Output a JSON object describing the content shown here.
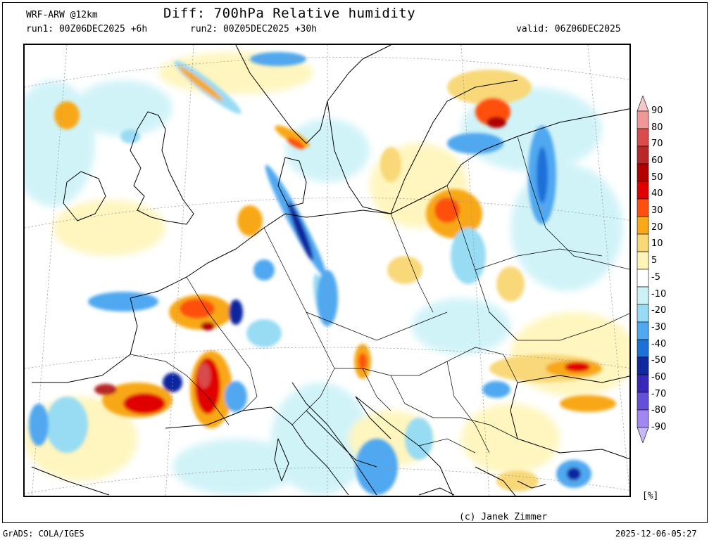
{
  "header": {
    "model": "WRF-ARW @12km",
    "title": "Diff: 700hPa Relative humidity",
    "run1": "run1: 00Z06DEC2025 +6h",
    "run2": "run2: 00Z05DEC2025 +30h",
    "valid": "valid: 06Z06DEC2025"
  },
  "colorbar": {
    "unit": "[%]",
    "levels": [
      {
        "label": "90",
        "color": "#f8c8c8"
      },
      {
        "label": "80",
        "color": "#f09898"
      },
      {
        "label": "70",
        "color": "#d84c4c"
      },
      {
        "label": "60",
        "color": "#b82828"
      },
      {
        "label": "50",
        "color": "#b00000"
      },
      {
        "label": "40",
        "color": "#e00000"
      },
      {
        "label": "30",
        "color": "#ff5010"
      },
      {
        "label": "20",
        "color": "#f8a818"
      },
      {
        "label": "10",
        "color": "#f8d878"
      },
      {
        "label": "5",
        "color": "#fff4b8"
      },
      {
        "label": "-5",
        "color": "#ffffff"
      },
      {
        "label": "-10",
        "color": "#ccf2f8"
      },
      {
        "label": "-20",
        "color": "#98dcf4"
      },
      {
        "label": "-30",
        "color": "#50a8f0"
      },
      {
        "label": "-40",
        "color": "#1c70d8"
      },
      {
        "label": "-50",
        "color": "#1028a0"
      },
      {
        "label": "-60",
        "color": "#3828b8"
      },
      {
        "label": "-70",
        "color": "#6450d8"
      },
      {
        "label": "-80",
        "color": "#a088f0"
      },
      {
        "label": "-90",
        "color": "#c8b8f8"
      }
    ]
  },
  "footer": {
    "credit": "(c) Janek Zimmer",
    "software": "GrADS: COLA/IGES",
    "timestamp": "2025-12-06-05:27"
  }
}
